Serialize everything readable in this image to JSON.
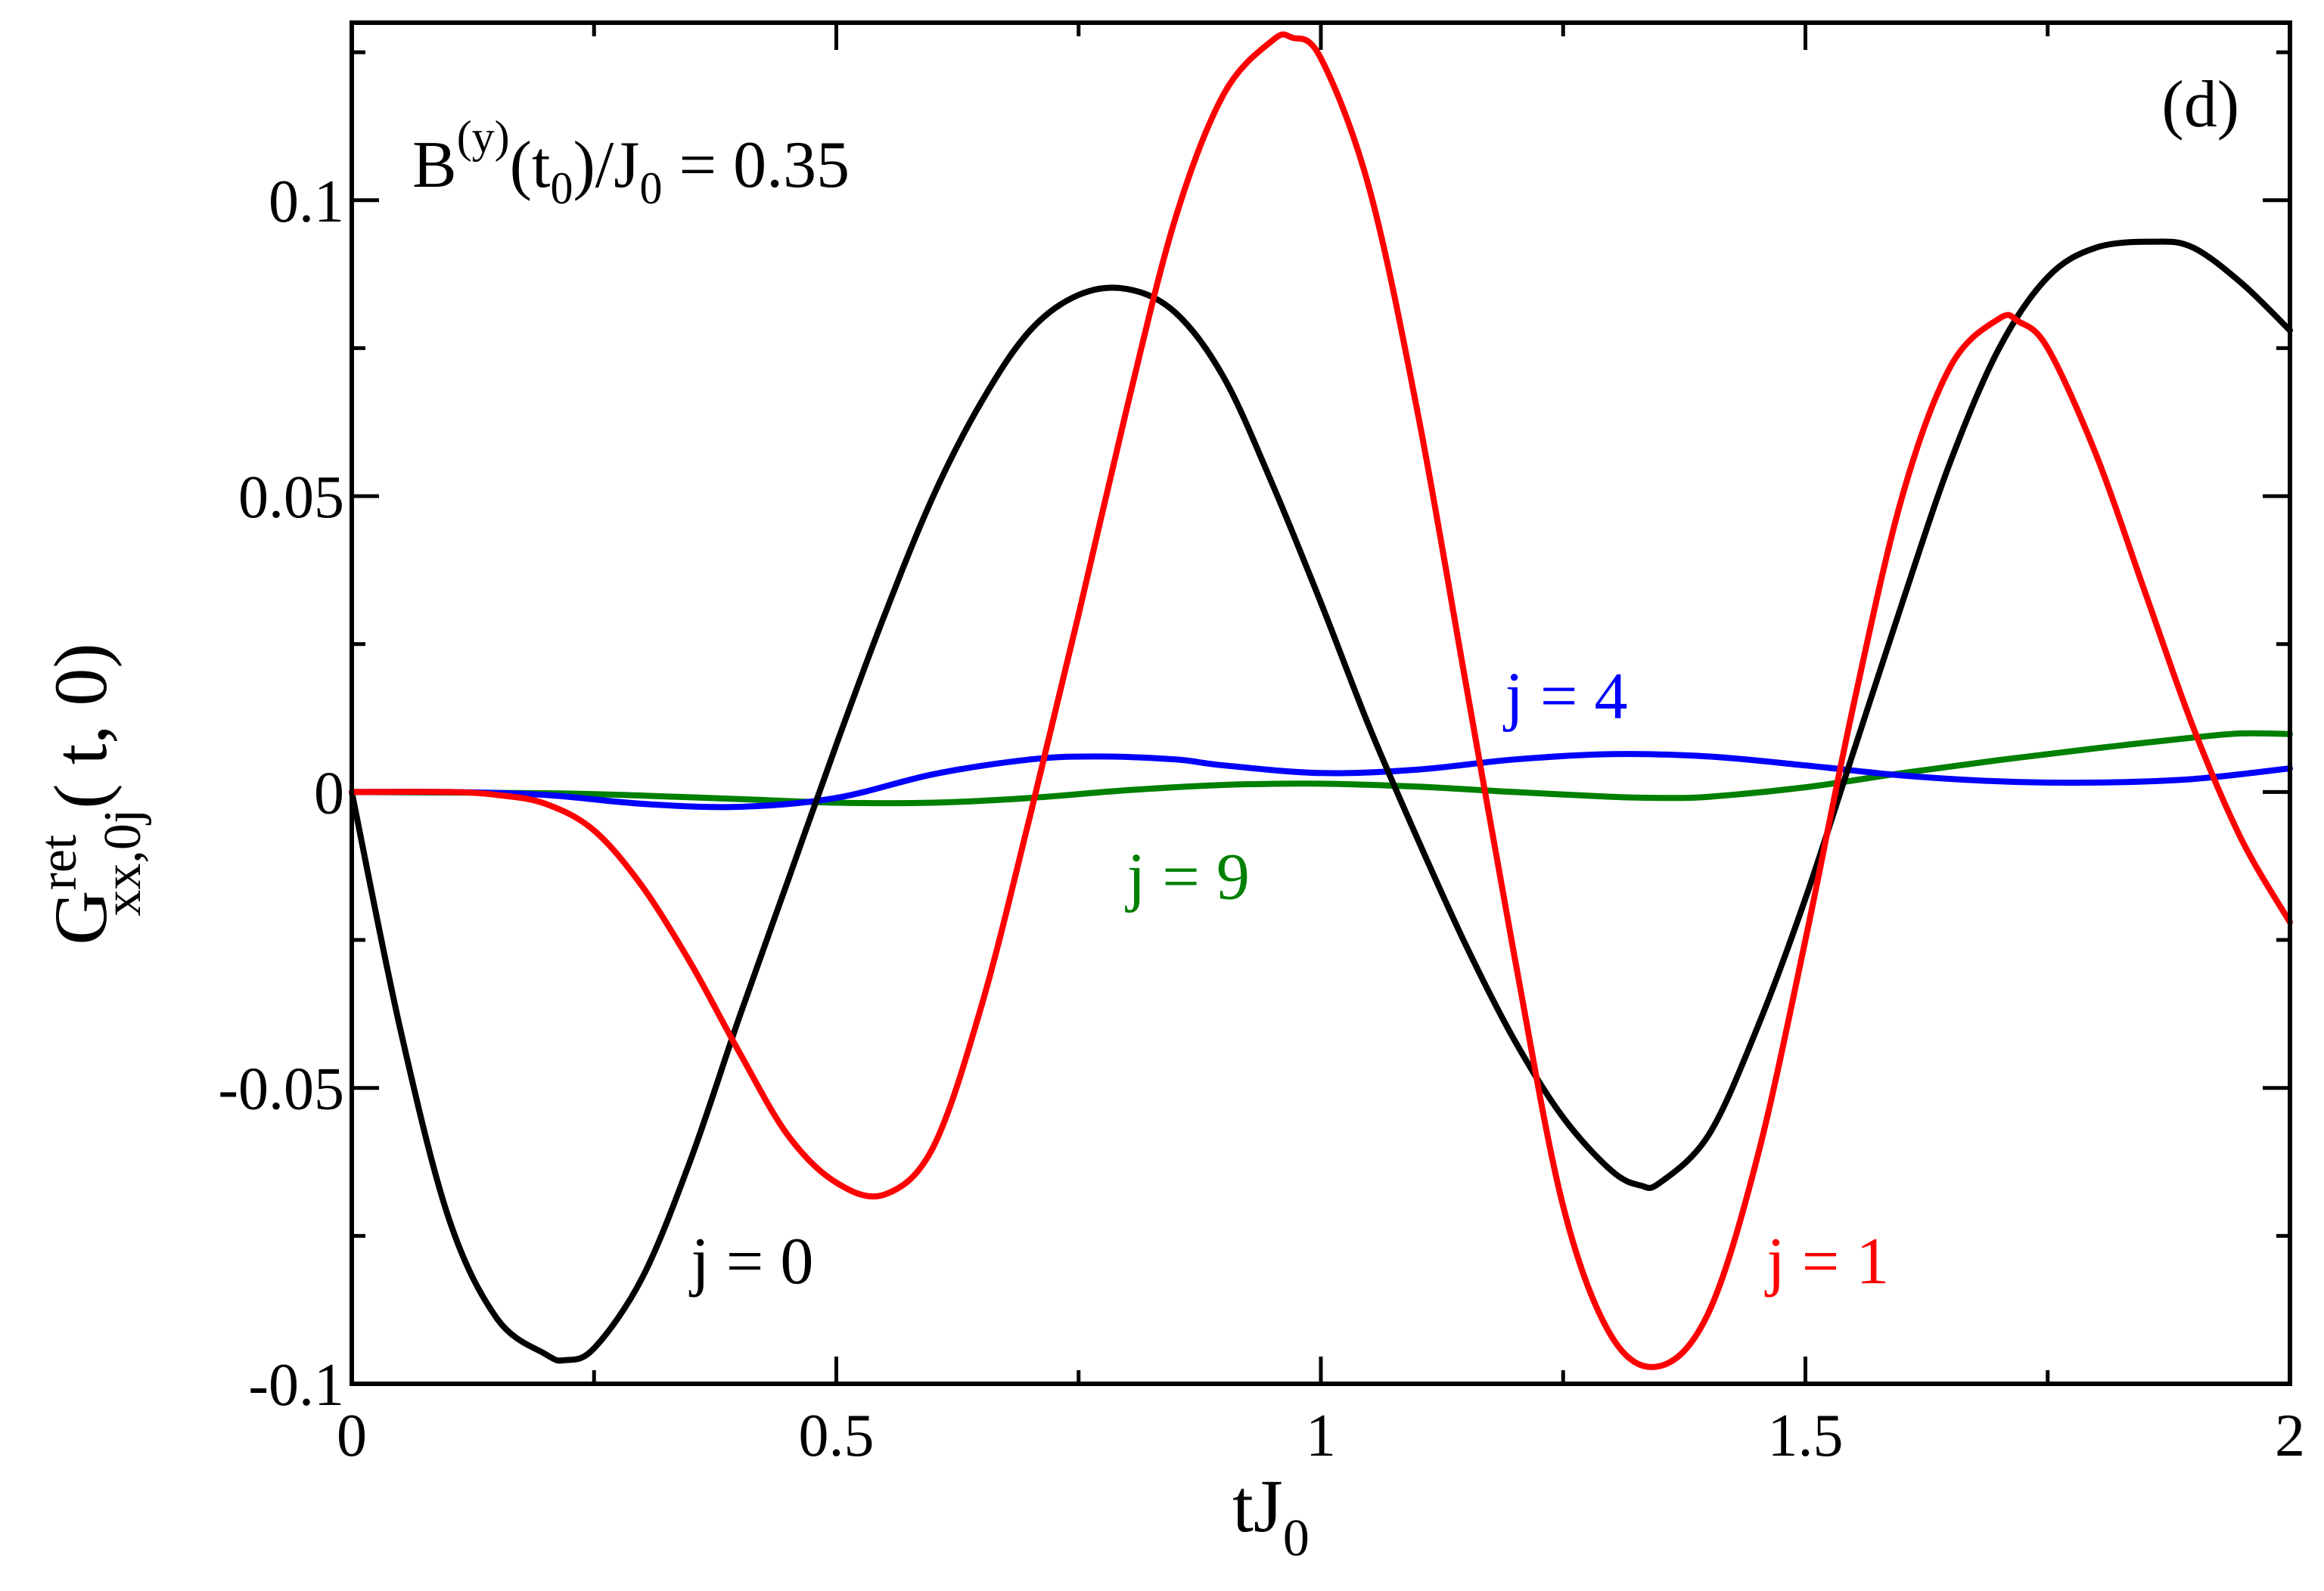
{
  "chart_data": {
    "type": "line",
    "panel_label": "(d)",
    "annotation": {
      "base": "B",
      "sup": "(y)",
      "open": "(t",
      "sub1": "0",
      "mid": ")/J",
      "sub2": "0",
      "rest": " = 0.35"
    },
    "xlabel": {
      "base": "tJ",
      "sub": "0"
    },
    "ylabel": {
      "base": "G",
      "sup": "ret",
      "sub": "xx,0j",
      "rest": "( t, 0)"
    },
    "xlim": [
      0,
      2
    ],
    "ylim": [
      -0.1,
      0.13
    ],
    "xticks": [
      0,
      0.5,
      1,
      1.5,
      2
    ],
    "xtick_labels": [
      "0",
      "0.5",
      "1",
      "1.5",
      "2"
    ],
    "xminor": [
      0.25,
      0.75,
      1.25,
      1.75
    ],
    "yticks": [
      -0.1,
      -0.05,
      0,
      0.05,
      0.1
    ],
    "ytick_labels": [
      "-0.1",
      "-0.05",
      "0",
      "0.05",
      "0.1"
    ],
    "yminor": [
      -0.075,
      -0.025,
      0.025,
      0.075,
      0.125
    ],
    "grid": false,
    "series": [
      {
        "name": "j = 0",
        "color": "#000000",
        "label_at": [
          0.35,
          -0.083
        ],
        "x": [
          0,
          0.05,
          0.1,
          0.15,
          0.2,
          0.22,
          0.25,
          0.3,
          0.35,
          0.4,
          0.45,
          0.5,
          0.55,
          0.6,
          0.65,
          0.7,
          0.75,
          0.8,
          0.85,
          0.9,
          0.95,
          1.0,
          1.05,
          1.1,
          1.15,
          1.2,
          1.25,
          1.3,
          1.33,
          1.35,
          1.4,
          1.45,
          1.5,
          1.55,
          1.6,
          1.65,
          1.7,
          1.75,
          1.8,
          1.86,
          1.9,
          1.95,
          2.0
        ],
        "y": [
          0,
          -0.04,
          -0.072,
          -0.089,
          -0.095,
          -0.096,
          -0.094,
          -0.082,
          -0.062,
          -0.038,
          -0.015,
          0.008,
          0.03,
          0.05,
          0.066,
          0.078,
          0.084,
          0.085,
          0.081,
          0.07,
          0.052,
          0.032,
          0.011,
          -0.008,
          -0.026,
          -0.042,
          -0.055,
          -0.064,
          -0.0665,
          -0.066,
          -0.058,
          -0.04,
          -0.018,
          0.007,
          0.032,
          0.056,
          0.075,
          0.087,
          0.092,
          0.093,
          0.092,
          0.086,
          0.078
        ]
      },
      {
        "name": "j = 1",
        "color": "#ff0000",
        "label_at": [
          1.46,
          -0.083
        ],
        "x": [
          0,
          0.1,
          0.15,
          0.2,
          0.25,
          0.3,
          0.35,
          0.4,
          0.45,
          0.5,
          0.55,
          0.6,
          0.65,
          0.7,
          0.75,
          0.8,
          0.85,
          0.9,
          0.95,
          0.97,
          1.0,
          1.05,
          1.1,
          1.15,
          1.2,
          1.25,
          1.3,
          1.35,
          1.4,
          1.45,
          1.5,
          1.55,
          1.6,
          1.65,
          1.7,
          1.72,
          1.75,
          1.8,
          1.85,
          1.9,
          1.95,
          2.0
        ],
        "y": [
          0,
          0,
          -0.0005,
          -0.002,
          -0.0065,
          -0.016,
          -0.029,
          -0.044,
          -0.058,
          -0.066,
          -0.068,
          -0.06,
          -0.036,
          -0.004,
          0.03,
          0.065,
          0.097,
          0.118,
          0.127,
          0.1275,
          0.124,
          0.102,
          0.064,
          0.018,
          -0.028,
          -0.07,
          -0.092,
          -0.097,
          -0.088,
          -0.062,
          -0.025,
          0.015,
          0.05,
          0.072,
          0.08,
          0.0795,
          0.075,
          0.057,
          0.034,
          0.011,
          -0.008,
          -0.022
        ]
      },
      {
        "name": "j = 4",
        "color": "#0000ff",
        "label_at": [
          1.19,
          0.0125
        ],
        "x": [
          0,
          0.1,
          0.2,
          0.3,
          0.4,
          0.5,
          0.6,
          0.7,
          0.77,
          0.85,
          0.9,
          1.0,
          1.1,
          1.2,
          1.3,
          1.4,
          1.5,
          1.6,
          1.7,
          1.8,
          1.9,
          2.0
        ],
        "y": [
          0,
          0,
          -0.0005,
          -0.002,
          -0.0025,
          -0.001,
          0.003,
          0.0055,
          0.006,
          0.0055,
          0.0045,
          0.0032,
          0.0038,
          0.0055,
          0.0064,
          0.006,
          0.0045,
          0.0028,
          0.0018,
          0.0016,
          0.0022,
          0.004
        ]
      },
      {
        "name": "j = 9",
        "color": "#008000",
        "label_at": [
          0.8,
          -0.018
        ],
        "x": [
          0,
          0.2,
          0.3,
          0.4,
          0.5,
          0.6,
          0.7,
          0.8,
          0.9,
          1.0,
          1.1,
          1.2,
          1.3,
          1.35,
          1.4,
          1.5,
          1.6,
          1.7,
          1.8,
          1.9,
          1.95,
          2.0
        ],
        "y": [
          0,
          -0.0002,
          -0.0006,
          -0.0012,
          -0.0018,
          -0.0018,
          -0.001,
          0.0003,
          0.0012,
          0.0014,
          0.0009,
          0,
          -0.0008,
          -0.001,
          -0.0008,
          0.0008,
          0.0032,
          0.0054,
          0.0074,
          0.0092,
          0.0099,
          0.0098
        ]
      }
    ]
  }
}
